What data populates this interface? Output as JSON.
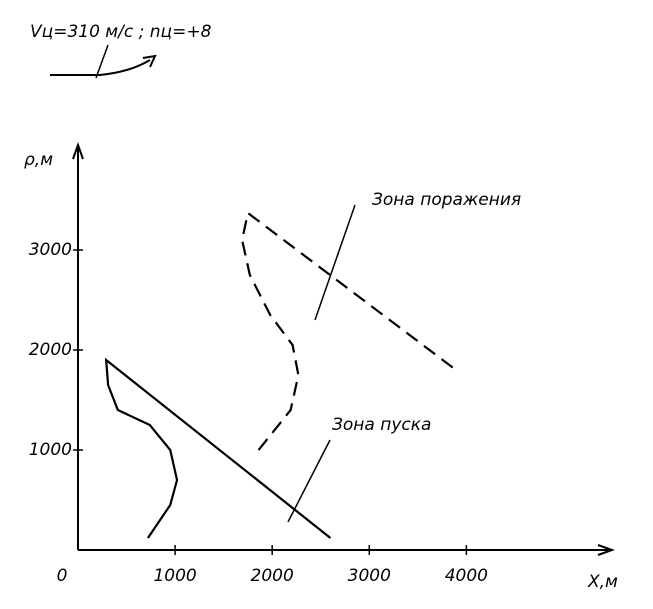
{
  "chart_data": {
    "type": "line",
    "annotation": "Vц=310 м/с ; nц=+8",
    "x_label": "X,м",
    "y_label": "ρ,м",
    "xlim": [
      0,
      5500
    ],
    "ylim": [
      0,
      4050
    ],
    "xticks": [
      0,
      1000,
      2000,
      3000,
      4000
    ],
    "yticks": [
      1000,
      2000,
      3000
    ],
    "series": [
      {
        "name": "Зона пуска",
        "color": "#000000",
        "dashed": false,
        "x": [
          720,
          950,
          1020,
          950,
          740,
          410,
          310,
          290,
          2600
        ],
        "values": [
          120,
          450,
          700,
          1000,
          1250,
          1400,
          1650,
          1900,
          120
        ]
      },
      {
        "name": "Зона поражения",
        "color": "#000000",
        "dashed": true,
        "x": [
          1860,
          2190,
          2270,
          2210,
          1980,
          1770,
          1690,
          1750,
          3920
        ],
        "values": [
          1000,
          1400,
          1750,
          2050,
          2350,
          2750,
          3100,
          3370,
          1780
        ]
      }
    ]
  }
}
